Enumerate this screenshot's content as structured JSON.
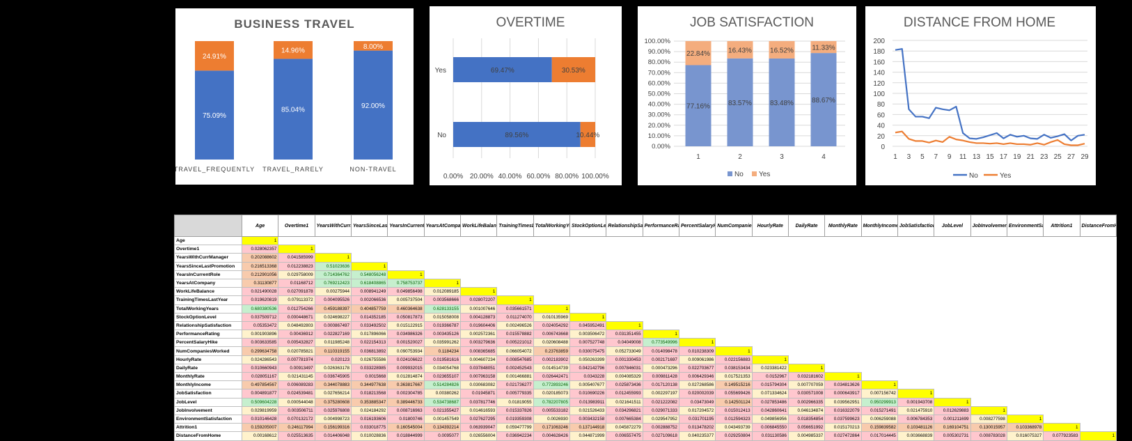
{
  "charts": [
    {
      "title": "BUSINESS TRAVEL"
    },
    {
      "title": "OVERTIME"
    },
    {
      "title": "JOB SATISFACTION"
    },
    {
      "title": "DISTANCE FROM HOME"
    }
  ],
  "colors": {
    "no": "#4472c4",
    "yes": "#ed7d31",
    "one": "#ffff00"
  },
  "chart_data": [
    {
      "type": "bar",
      "stacked": true,
      "title": "BUSINESS TRAVEL",
      "categories": [
        "TRAVEL_FREQUENTLY",
        "TRAVEL_RARELY",
        "NON-TRAVEL"
      ],
      "series": [
        {
          "values": [
            75.09,
            85.04,
            92.0
          ],
          "labels": [
            "75.09%",
            "85.04%",
            "92.00%"
          ]
        },
        {
          "values": [
            24.91,
            14.96,
            8.0
          ],
          "labels": [
            "24.91%",
            "14.96%",
            "8.00%"
          ]
        }
      ],
      "ylim": [
        0,
        100
      ],
      "grid": false,
      "legend": "none"
    },
    {
      "type": "bar",
      "orientation": "horizontal",
      "stacked": true,
      "title": "OVERTIME",
      "categories": [
        "Yes",
        "No"
      ],
      "series": [
        {
          "values": [
            69.47,
            89.56
          ],
          "labels": [
            "69.47%",
            "89.56%"
          ]
        },
        {
          "values": [
            30.53,
            10.44
          ],
          "labels": [
            "30.53%",
            "10.44%"
          ]
        }
      ],
      "xlim": [
        0,
        100
      ],
      "xticks": [
        "0.00%",
        "20.00%",
        "40.00%",
        "60.00%",
        "80.00%",
        "100.00%"
      ],
      "grid": true,
      "legend": "none"
    },
    {
      "type": "bar",
      "stacked": true,
      "title": "JOB SATISFACTION",
      "categories": [
        "1",
        "2",
        "3",
        "4"
      ],
      "series": [
        {
          "name": "No",
          "values": [
            77.16,
            83.57,
            83.48,
            88.67
          ],
          "labels": [
            "77.16%",
            "83.57%",
            "83.48%",
            "88.67%"
          ]
        },
        {
          "name": "Yes",
          "values": [
            22.84,
            16.43,
            16.52,
            11.33
          ],
          "labels": [
            "22.84%",
            "16.43%",
            "16.52%",
            "11.33%"
          ]
        }
      ],
      "ylim": [
        0,
        100
      ],
      "yticks": [
        "0.00%",
        "10.00%",
        "20.00%",
        "30.00%",
        "40.00%",
        "50.00%",
        "60.00%",
        "70.00%",
        "80.00%",
        "90.00%",
        "100.00%"
      ],
      "grid": true,
      "legend": "bottom"
    },
    {
      "type": "line",
      "title": "DISTANCE FROM HOME",
      "x": [
        1,
        2,
        3,
        4,
        5,
        6,
        7,
        8,
        9,
        10,
        11,
        12,
        13,
        14,
        15,
        16,
        17,
        18,
        19,
        20,
        21,
        22,
        23,
        24,
        25,
        26,
        27,
        28,
        29
      ],
      "xticks": [
        "1",
        "3",
        "5",
        "7",
        "9",
        "11",
        "13",
        "15",
        "17",
        "19",
        "21",
        "23",
        "25",
        "27",
        "29"
      ],
      "series": [
        {
          "name": "No",
          "values": [
            182,
            184,
            70,
            56,
            56,
            53,
            73,
            70,
            68,
            75,
            25,
            15,
            14,
            17,
            21,
            25,
            15,
            22,
            18,
            20,
            15,
            14,
            22,
            16,
            19,
            23,
            11,
            20,
            22
          ]
        },
        {
          "name": "Yes",
          "values": [
            26,
            28,
            14,
            10,
            10,
            7,
            11,
            8,
            18,
            13,
            11,
            8,
            6,
            6,
            5,
            6,
            4,
            6,
            4,
            4,
            3,
            6,
            3,
            8,
            12,
            4,
            2,
            2,
            5
          ]
        }
      ],
      "ylim": [
        0,
        200
      ],
      "yticks": [
        "0",
        "20",
        "40",
        "60",
        "80",
        "100",
        "120",
        "140",
        "160",
        "180",
        "200"
      ],
      "grid": true,
      "legend": "bottom"
    },
    {
      "type": "heatmap",
      "columns": [
        "Age",
        "Overtime1",
        "YearsWithCurrManager",
        "YearsSinceLastPromotion",
        "YearsInCurrentRole",
        "YearsAtCompany",
        "WorkLifeBalance",
        "TrainingTimesLastYear",
        "TotalWorkingYears",
        "StockOptionLevel",
        "RelationshipSatisfaction",
        "PerformanceRating",
        "PercentSalaryHike",
        "NumCompaniesWorked",
        "HourlyRate",
        "DailyRate",
        "MonthlyRate",
        "MonthlyIncome",
        "JobSatisfaction",
        "JobLevel",
        "JobInvolvement",
        "EnvironmentSatisfaction",
        "Attrition1",
        "DistanceFromHome"
      ],
      "rows": [
        [
          "Age",
          [
            "1"
          ]
        ],
        [
          "Overtime1",
          [
            "0.028062357",
            "1"
          ]
        ],
        [
          "YearsWithCurrManager",
          [
            "0.202088602",
            "0.041585999",
            "1"
          ]
        ],
        [
          "YearsSinceLastPromotion",
          [
            "0.216513368",
            "0.012238823",
            "0.51023636",
            "1"
          ]
        ],
        [
          "YearsInCurrentRole",
          [
            "0.212901056",
            "0.029758009",
            "0.714364762",
            "0.548056248",
            "1"
          ]
        ],
        [
          "YearsAtCompany",
          [
            "0.31130877",
            "0.01168712",
            "0.769212423",
            "0.618408865",
            "0.758753737",
            "1"
          ]
        ],
        [
          "WorkLifeBalance",
          [
            "0.021490028",
            "0.027091878",
            "0.00275944",
            "0.008941249",
            "0.049856498",
            "0.012089185",
            "1"
          ]
        ],
        [
          "TrainingTimesLastYear",
          [
            "0.019620819",
            "0.079113372",
            "0.004095526",
            "0.002066536",
            "0.005737504",
            "0.003568666",
            "0.028072207",
            "1"
          ]
        ],
        [
          "TotalWorkingYears",
          [
            "0.680380536",
            "0.012754266",
            "0.459188397",
            "0.404857759",
            "0.460364638",
            "0.628133155",
            "0.001007646",
            "0.035661571",
            "1"
          ]
        ],
        [
          "StockOptionLevel",
          [
            "0.037509712",
            "0.000448671",
            "0.024698227",
            "0.014352185",
            "0.050817873",
            "0.015058008",
            "0.004128873",
            "0.011274070",
            "0.010135969",
            "1"
          ]
        ],
        [
          "RelationshipSatisfaction",
          [
            "0.05353472",
            "0.048492803",
            "0.000867497",
            "0.033492502",
            "0.015122915",
            "0.019366787",
            "0.019604406",
            "0.002496526",
            "0.024054292",
            "0.045952491",
            "1"
          ]
        ],
        [
          "PerformanceRating",
          [
            "0.001903896",
            "0.00436912",
            "0.022827169",
            "0.017896066",
            "0.034986326",
            "0.003435126",
            "0.002572361",
            "0.015578882",
            "0.006743668",
            "0.003506472",
            "0.031351455",
            "1"
          ]
        ],
        [
          "PercentSalaryHike",
          [
            "0.003633585",
            "0.005432827",
            "0.011985248",
            "0.022154313",
            "0.001520027",
            "0.035991262",
            "0.003279636",
            "0.005221012",
            "0.020608488",
            "0.007527748",
            "0.04049008",
            "0.773549996",
            "1"
          ]
        ],
        [
          "NumCompaniesWorked",
          [
            "0.299634758",
            "0.020785821",
            "0.110319155",
            "0.036813892",
            "0.090753934",
            "0.1184234",
            "0.008365685",
            "0.066054072",
            "0.23763859",
            "0.030075475",
            "0.052733049",
            "0.014098478",
            "0.010238309",
            "1"
          ]
        ],
        [
          "HourlyRate",
          [
            "0.024286543",
            "0.007781974",
            "0.020123",
            "0.026755586",
            "0.024106622",
            "0.019581616",
            "0.004607234",
            "0.008547685",
            "0.002183902",
            "0.050263399",
            "0.001330453",
            "0.002171697",
            "0.009061986",
            "0.022156883",
            "1"
          ]
        ],
        [
          "DailyRate",
          [
            "0.010660943",
            "0.00913497",
            "0.026363178",
            "0.033228985",
            "0.009932015",
            "0.034054768",
            "0.037848051",
            "0.002452543",
            "0.014514739",
            "0.042142796",
            "0.007846031",
            "0.000473296",
            "0.022703677",
            "0.038153434",
            "0.023381422",
            "1"
          ]
        ],
        [
          "MonthlyRate",
          [
            "0.028051167",
            "0.021431145",
            "0.036745905",
            "0.0015668",
            "0.012814874",
            "0.023655107",
            "0.007963158",
            "0.001466881",
            "0.026442471",
            "0.0343228",
            "0.004085329",
            "0.009811428",
            "0.006429346",
            "0.017521353",
            "0.0152967",
            "0.032181602",
            "1"
          ]
        ],
        [
          "MonthlyIncome",
          [
            "0.497854567",
            "0.006089283",
            "0.344078883",
            "0.344977638",
            "0.363817667",
            "0.514284826",
            "0.030683082",
            "0.021736277",
            "0.772893246",
            "0.005407677",
            "0.025873436",
            "0.017120138",
            "0.027268586",
            "0.149515216",
            "0.015794304",
            "0.007707059",
            "0.034813626",
            "1"
          ]
        ],
        [
          "JobSatisfaction",
          [
            "0.004891877",
            "0.024539481",
            "0.027656214",
            "0.018213568",
            "0.002304785",
            "0.00380262",
            "0.01945871",
            "0.005779335",
            "0.020185073",
            "0.010690226",
            "0.012455993",
            "0.002297197",
            "0.020002039",
            "0.055699426",
            "0.071334624",
            "0.030571008",
            "0.000643917",
            "0.007156742",
            "1"
          ]
        ],
        [
          "JobLevel",
          [
            "0.509604228",
            "0.000544048",
            "0.375280608",
            "0.353885347",
            "0.389446733",
            "0.534738687",
            "0.037817746",
            "0.01819055",
            "0.782207805",
            "0.013983911",
            "0.021641511",
            "0.021222082",
            "0.03473049",
            "0.142501124",
            "0.027853486",
            "0.002966335",
            "0.039562951",
            "0.950299913",
            "0.001943708",
            "1"
          ]
        ],
        [
          "JobInvolvement",
          [
            "0.029819959",
            "0.003506711",
            "0.025976808",
            "0.024184292",
            "0.008716963",
            "0.021355427",
            "0.014616593",
            "0.015337826",
            "0.005533182",
            "0.021526433",
            "0.034296821",
            "0.029071333",
            "0.017204572",
            "0.015012413",
            "0.042860641",
            "0.046134874",
            "0.016322079",
            "0.015271491",
            "0.021475910",
            "0.012629883",
            "1"
          ]
        ],
        [
          "EnvironmentSatisfaction",
          [
            "0.010146428",
            "0.070132172",
            "0.004998723",
            "0.016193606",
            "0.01800746",
            "0.001457549",
            "0.027627295",
            "0.019359308",
            "0.0026930",
            "0.003432158",
            "0.007665384",
            "0.029547952",
            "0.031701195",
            "0.012594323",
            "0.049856956",
            "0.018354854",
            "0.037599623",
            "0.006259088",
            "0.006784353",
            "0.001211699",
            "0.008277598",
            "1"
          ]
        ],
        [
          "Attrition1",
          [
            "0.159205007",
            "0.246117994",
            "0.156199316",
            "0.033018775",
            "0.160545004",
            "0.134392214",
            "0.063939047",
            "0.059477799",
            "0.171063246",
            "0.137144918",
            "0.045872279",
            "0.002888752",
            "0.013478202",
            "0.043493739",
            "0.006845550",
            "0.056651992",
            "0.015170213",
            "0.159839582",
            "0.103481126",
            "0.169104751",
            "0.130015957",
            "0.103368978",
            "1"
          ]
        ],
        [
          "DistanceFromHome",
          [
            "0.00168612",
            "0.025513635",
            "0.014406048",
            "0.010028836",
            "0.018844999",
            "0.0095077",
            "0.026556004",
            "0.036942234",
            "0.004628426",
            "0.044871999",
            "0.006557475",
            "0.027109618",
            "0.040235377",
            "0.029250804",
            "0.031130586",
            "0.004985337",
            "0.027472864",
            "0.017014445",
            "0.003668839",
            "0.005302731",
            "0.008783028",
            "0.016075327",
            "0.077923583",
            "1"
          ]
        ]
      ],
      "highlight": {
        "green": [
          "YearsSinceLastPromotion|YearsWithCurrManager",
          "YearsInCurrentRole|YearsWithCurrManager",
          "YearsInCurrentRole|YearsSinceLastPromotion",
          "YearsAtCompany|YearsWithCurrManager",
          "YearsAtCompany|YearsSinceLastPromotion",
          "YearsAtCompany|YearsInCurrentRole",
          "TotalWorkingYears|Age",
          "TotalWorkingYears|YearsAtCompany",
          "PercentSalaryHike|PerformanceRating",
          "MonthlyIncome|YearsAtCompany",
          "MonthlyIncome|TotalWorkingYears",
          "JobLevel|Age",
          "JobLevel|YearsAtCompany",
          "JobLevel|TotalWorkingYears",
          "JobLevel|MonthlyIncome"
        ]
      }
    }
  ]
}
